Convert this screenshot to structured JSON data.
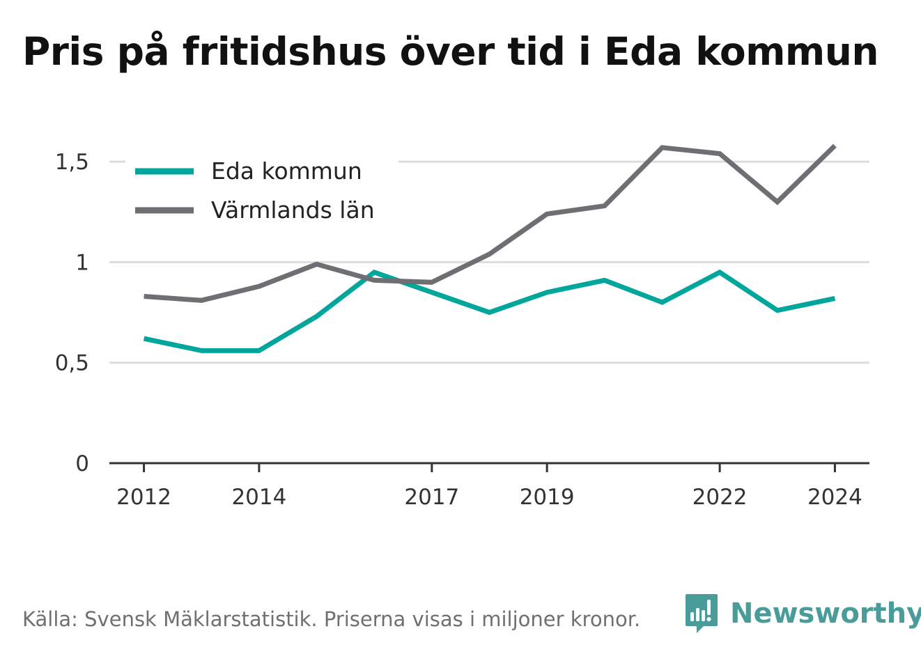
{
  "header": {
    "title": "Pris på fritidshus över tid i Eda kommun"
  },
  "footer": {
    "source": "Källa: Svensk Mäklarstatistik. Priserna visas i miljoner kronor.",
    "brand": "Newsworthy"
  },
  "colors": {
    "eda": "#00a59b",
    "varmland": "#6e6e73",
    "grid": "#dddddd",
    "axis": "#333333",
    "text": "#333333",
    "brand": "#4a9c9a"
  },
  "chart_data": {
    "type": "line",
    "title": "Pris på fritidshus över tid i Eda kommun",
    "xlabel": "",
    "ylabel": "",
    "x": [
      2012,
      2013,
      2014,
      2015,
      2016,
      2017,
      2018,
      2019,
      2020,
      2021,
      2022,
      2023,
      2024
    ],
    "xticks": [
      2012,
      2014,
      2017,
      2019,
      2022,
      2024
    ],
    "yticks": [
      0,
      0.5,
      1,
      1.5
    ],
    "ytick_labels": [
      "0",
      "0,5",
      "1",
      "1,5"
    ],
    "xlim": [
      2011.4,
      2024.6
    ],
    "ylim": [
      0,
      1.75
    ],
    "grid": true,
    "legend": "top-left",
    "series": [
      {
        "name": "Eda kommun",
        "color": "#00a59b",
        "values": [
          0.62,
          0.56,
          0.56,
          0.73,
          0.95,
          0.85,
          0.75,
          0.85,
          0.91,
          0.8,
          0.95,
          0.76,
          0.82
        ]
      },
      {
        "name": "Värmlands län",
        "color": "#6e6e73",
        "values": [
          0.83,
          0.81,
          0.88,
          0.99,
          0.91,
          0.9,
          1.04,
          1.24,
          1.28,
          1.57,
          1.54,
          1.3,
          1.58
        ]
      }
    ]
  }
}
